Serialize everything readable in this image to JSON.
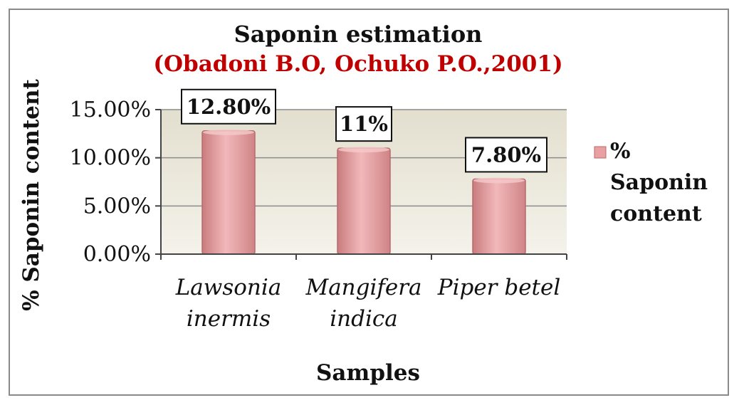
{
  "chart_data": {
    "type": "bar",
    "title": "Saponin estimation",
    "subtitle": "(Obadoni B.O, Ochuko P.O.,2001)",
    "categories": [
      [
        "Lawsonia",
        "inermis"
      ],
      [
        "Mangifera",
        "indica"
      ],
      [
        "Piper betel"
      ]
    ],
    "series": [
      {
        "name": "% Saponin content",
        "values": [
          12.8,
          11.0,
          7.8
        ]
      }
    ],
    "data_labels": [
      "12.80%",
      "11%",
      "7.80%"
    ],
    "y_ticks": [
      "0.00%",
      "5.00%",
      "10.00%",
      "15.00%"
    ],
    "ylim": [
      0,
      15
    ],
    "xlabel": "Samples",
    "ylabel": "% Saponin content",
    "legend": {
      "placement": "right",
      "lines": [
        "%",
        "Saponin",
        "content"
      ]
    },
    "grid": true,
    "colors": {
      "bar": "#e8a0a2",
      "bar_edge": "#b86a6c",
      "subtitle": "#c00000",
      "plot_bg": "#ece9dd"
    }
  }
}
